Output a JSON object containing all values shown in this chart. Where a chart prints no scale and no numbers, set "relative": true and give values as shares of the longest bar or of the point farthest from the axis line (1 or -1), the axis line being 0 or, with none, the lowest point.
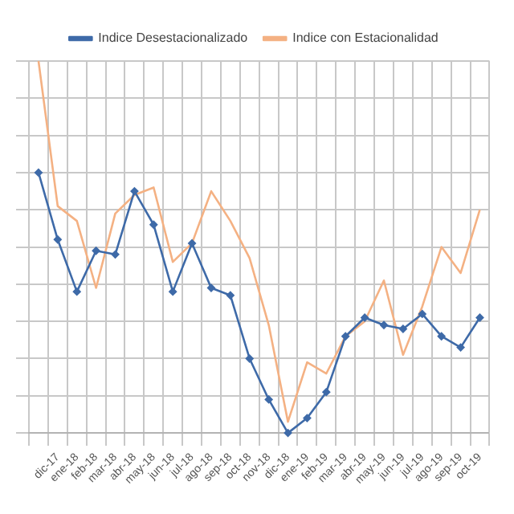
{
  "chart_data": {
    "type": "line",
    "relative": true,
    "categories": [
      null,
      "dic-17",
      "ene-18",
      "feb-18",
      "mar-18",
      "abr-18",
      "may-18",
      "jun-18",
      "jul-18",
      "ago-18",
      "sep-18",
      "oct-18",
      "nov-18",
      "dic-18",
      "ene-19",
      "feb-19",
      "mar-19",
      "abr-19",
      "may-19",
      "jun-19",
      "jul-19",
      "ago-19",
      "sep-19",
      "oct-19"
    ],
    "series": [
      {
        "name": "Indice Desestacionalizado",
        "color": "#3e6aa8",
        "marker": "diamond",
        "values": [
          0.7,
          0.52,
          0.38,
          0.49,
          0.48,
          0.65,
          0.56,
          0.38,
          0.51,
          0.39,
          0.37,
          0.2,
          0.09,
          0,
          0.04,
          0.11,
          0.26,
          0.31,
          0.29,
          0.28,
          0.32,
          0.26,
          0.23,
          0.31
        ]
      },
      {
        "name": "Indice con Estacionalidad",
        "color": "#f4b183",
        "marker": "none",
        "values": [
          1,
          0.61,
          0.57,
          0.39,
          0.59,
          0.64,
          0.66,
          0.46,
          0.51,
          0.65,
          0.57,
          0.47,
          0.29,
          0.03,
          0.19,
          0.16,
          0.26,
          0.3,
          0.41,
          0.21,
          0.34,
          0.5,
          0.43,
          0.6
        ]
      }
    ],
    "grid": true,
    "legend": "top",
    "line_style": "solid"
  }
}
